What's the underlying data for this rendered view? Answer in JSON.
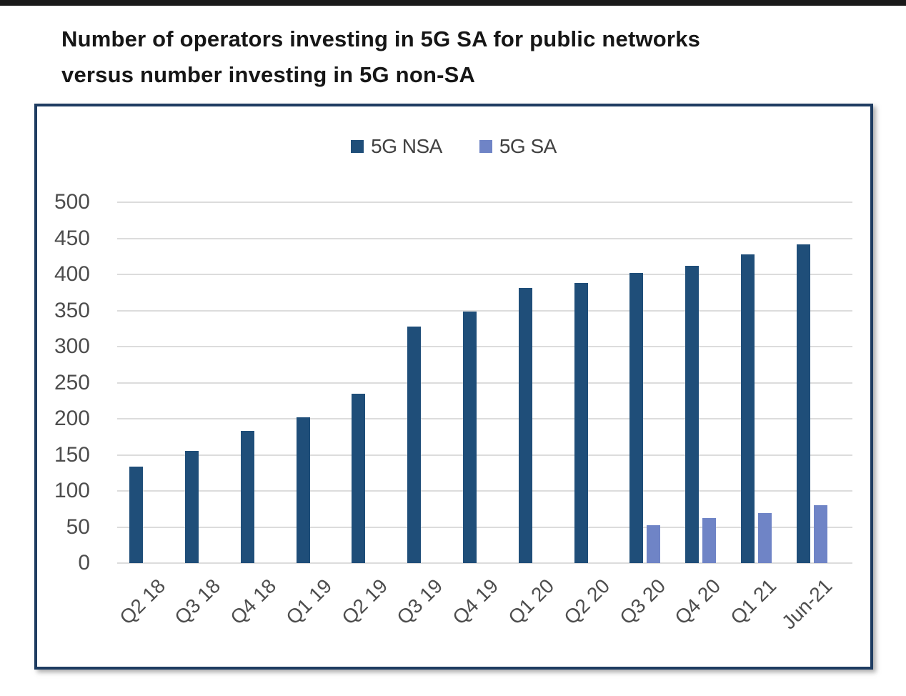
{
  "page": {
    "top_bar_color": "#1a1a1a",
    "background": "#ffffff",
    "chart_border_color": "#1e3c61"
  },
  "title": {
    "line1": "Number of operators investing in 5G SA for public networks",
    "line2": "versus number investing in 5G non-SA"
  },
  "chart_data": {
    "type": "bar",
    "title": "Number of operators investing in 5G SA for public networks versus number investing in 5G non-SA",
    "categories": [
      "Q2 18",
      "Q3 18",
      "Q4 18",
      "Q1 19",
      "Q2 19",
      "Q3 19",
      "Q4 19",
      "Q1 20",
      "Q2 20",
      "Q3 20",
      "Q4 20",
      "Q1 21",
      "Jun-21"
    ],
    "series": [
      {
        "name": "5G NSA",
        "color": "#1F4E79",
        "values": [
          134,
          155,
          183,
          202,
          235,
          328,
          349,
          381,
          388,
          402,
          412,
          428,
          442
        ]
      },
      {
        "name": "5G SA",
        "color": "#6F84C6",
        "values": [
          null,
          null,
          null,
          null,
          null,
          null,
          null,
          null,
          null,
          52,
          62,
          69,
          80
        ]
      }
    ],
    "xlabel": "",
    "ylabel": "",
    "ylim": [
      0,
      500
    ],
    "ytick_step": 50,
    "grid": true,
    "gridline_color": "#dcdcdc",
    "axis_label_color": "#4d4d4d",
    "legend_position": "top-center",
    "legend_text_color": "#404040"
  }
}
